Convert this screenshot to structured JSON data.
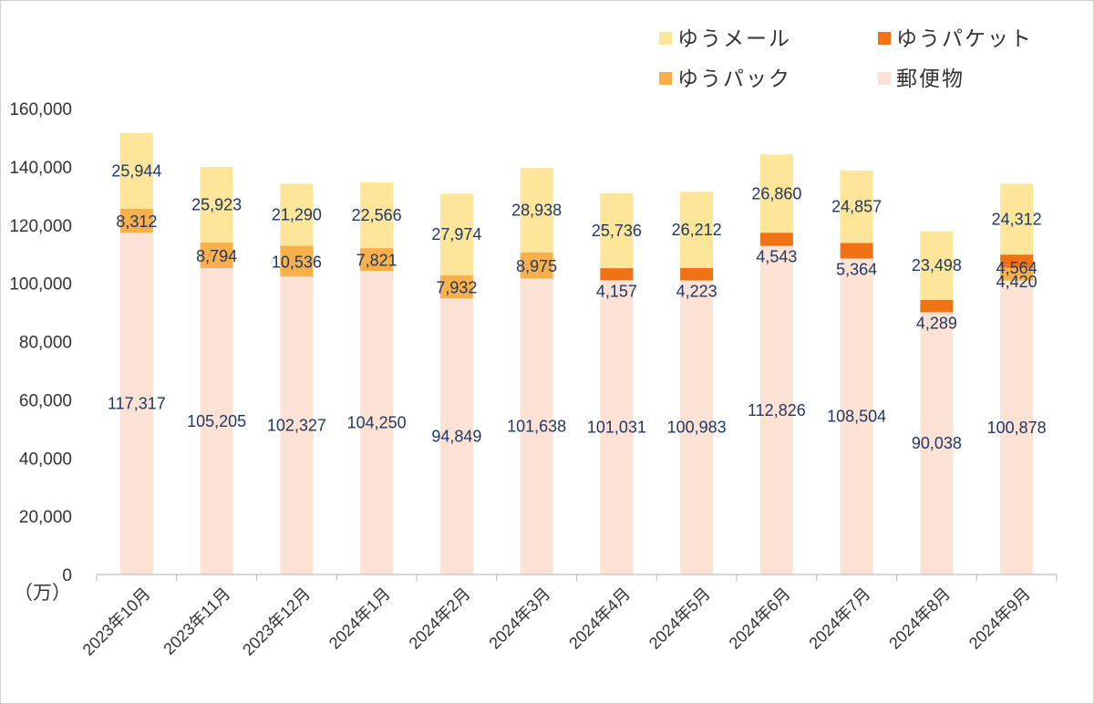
{
  "chart_data": {
    "type": "bar",
    "stacked": true,
    "categories": [
      "2023年10月",
      "2023年11月",
      "2023年12月",
      "2024年1月",
      "2024年2月",
      "2024年3月",
      "2024年4月",
      "2024年5月",
      "2024年6月",
      "2024年7月",
      "2024年8月",
      "2024年9月"
    ],
    "series": [
      {
        "name": "郵便物",
        "color": "#fbe2d5",
        "values": [
          117317,
          105205,
          102327,
          104250,
          94849,
          101638,
          101031,
          100983,
          112826,
          108504,
          90038,
          100878
        ]
      },
      {
        "name": "ゆうパック",
        "color": "#f9b04a",
        "values": [
          8312,
          8794,
          10536,
          7821,
          7932,
          8975,
          null,
          null,
          null,
          null,
          null,
          4420
        ]
      },
      {
        "name": "ゆうパケット",
        "color": "#f07214",
        "values": [
          null,
          null,
          null,
          null,
          null,
          null,
          4157,
          4223,
          4543,
          5364,
          4289,
          4564
        ]
      },
      {
        "name": "ゆうメール",
        "color": "#fde599",
        "values": [
          25944,
          25923,
          21290,
          22566,
          27974,
          28938,
          25736,
          26212,
          26860,
          24857,
          23498,
          24312
        ]
      }
    ],
    "legend_order": [
      "ゆうメール",
      "ゆうパケット",
      "ゆうパック",
      "郵便物"
    ],
    "legend_position": "top-right",
    "ylim": [
      0,
      160000
    ],
    "yticks": [
      0,
      20000,
      40000,
      60000,
      80000,
      100000,
      120000,
      140000,
      160000
    ],
    "ytick_labels": [
      "0",
      "20,000",
      "40,000",
      "60,000",
      "80,000",
      "100,000",
      "120,000",
      "140,000",
      "160,000"
    ],
    "unit_label": "（万）",
    "xlabel": "",
    "ylabel": "",
    "grid": false,
    "label_color": "#1f3864"
  }
}
